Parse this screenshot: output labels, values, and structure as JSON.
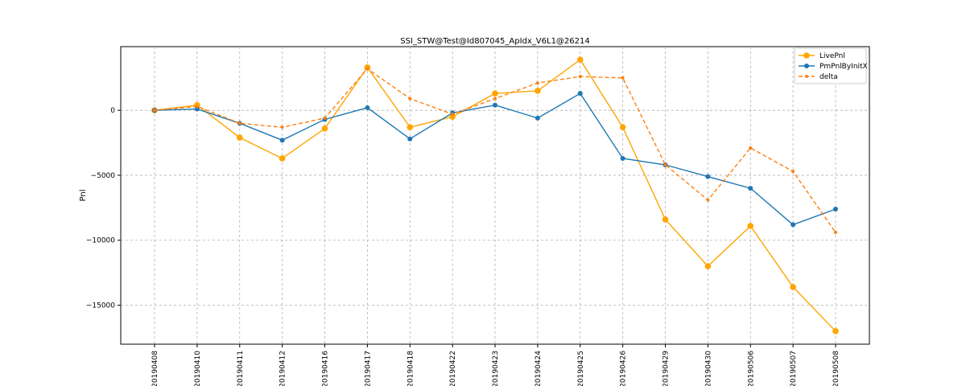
{
  "chart_data": {
    "type": "line",
    "title": "SSI_STW@Test@Id807045_ApIdx_V6L1@26214",
    "xlabel": "",
    "ylabel": "Pnl",
    "categories": [
      "20190408",
      "20190410",
      "20190411",
      "20190412",
      "20190416",
      "20190417",
      "20190418",
      "20190422",
      "20190423",
      "20190424",
      "20190425",
      "20190426",
      "20190429",
      "20190430",
      "20190506",
      "20190507",
      "20190508"
    ],
    "ylim": [
      -18000,
      4900
    ],
    "yticks": [
      0,
      -5000,
      -10000,
      -15000
    ],
    "ytick_labels": [
      "0",
      "−5000",
      "−10000",
      "−15000"
    ],
    "grid": true,
    "legend_position": "top-right",
    "series": [
      {
        "name": "LivePnl",
        "color": "#ffa500",
        "style": "solid",
        "marker": "large-circle",
        "values": [
          0,
          400,
          -2100,
          -3700,
          -1400,
          3300,
          -1300,
          -500,
          1300,
          1500,
          3900,
          -1300,
          -8400,
          -12000,
          -8900,
          -13600,
          -17000
        ]
      },
      {
        "name": "PmPnlByInitX",
        "color": "#1f77b4",
        "style": "solid",
        "marker": "circle",
        "values": [
          0,
          100,
          -1000,
          -2300,
          -700,
          200,
          -2200,
          -200,
          400,
          -600,
          1300,
          -3700,
          -4200,
          -5100,
          -6000,
          -8800,
          -7600
        ]
      },
      {
        "name": "delta",
        "color": "#ff7f0e",
        "style": "dashed",
        "marker": "small-circle",
        "values": [
          0,
          300,
          -1000,
          -1300,
          -600,
          3200,
          900,
          -300,
          900,
          2100,
          2600,
          2500,
          -4200,
          -6900,
          -2900,
          -4700,
          -9400
        ]
      }
    ]
  }
}
